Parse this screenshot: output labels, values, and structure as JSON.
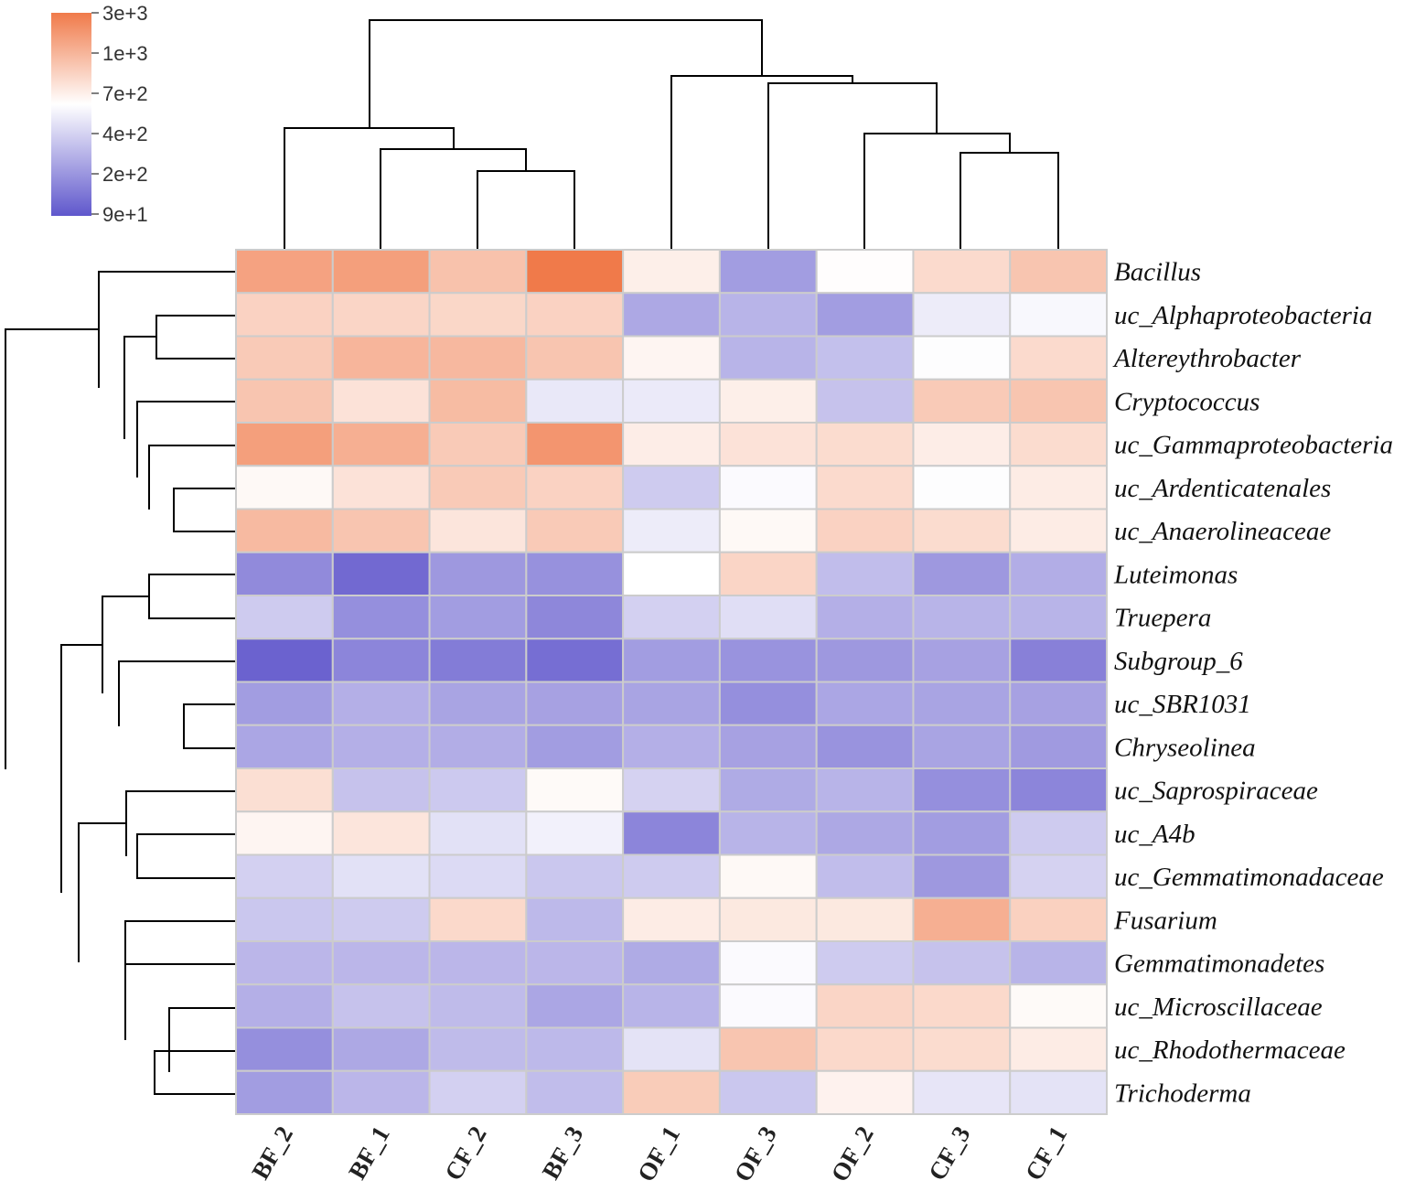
{
  "chart_data": {
    "type": "heatmap",
    "title": "",
    "columns": [
      "BF_2",
      "BF_1",
      "CF_2",
      "BF_3",
      "OF_1",
      "OF_3",
      "OF_2",
      "CF_3",
      "CF_1"
    ],
    "rows": [
      "Bacillus",
      "uc_Alphaproteobacteria",
      "Altereythrobacter",
      "Cryptococcus",
      "uc_Gammaproteobacteria",
      "uc_Ardenticatenales",
      "uc_Anaerolineaceae",
      "Luteimonas",
      "Truepera",
      "Subgroup_6",
      "uc_SBR1031",
      "Chryseolinea",
      "uc_Saprospiraceae",
      "uc_A4b",
      "uc_Gemmatimonadaceae",
      "Fusarium",
      "Gemmatimonadetes",
      "uc_Microscillaceae",
      "uc_Rhodothermaceae",
      "Trichoderma"
    ],
    "values_log10": [
      [
        3.2,
        3.22,
        3.0,
        3.45,
        2.72,
        2.2,
        2.63,
        2.85,
        2.98
      ],
      [
        2.9,
        2.88,
        2.87,
        2.9,
        2.25,
        2.3,
        2.2,
        2.54,
        2.59
      ],
      [
        2.95,
        3.08,
        3.06,
        2.98,
        2.68,
        2.3,
        2.35,
        2.61,
        2.85
      ],
      [
        2.98,
        2.8,
        3.04,
        2.52,
        2.53,
        2.72,
        2.36,
        2.95,
        2.98
      ],
      [
        3.22,
        3.12,
        2.95,
        3.28,
        2.73,
        2.8,
        2.84,
        2.73,
        2.84
      ],
      [
        2.66,
        2.8,
        2.95,
        2.9,
        2.4,
        2.6,
        2.85,
        2.61,
        2.74
      ],
      [
        3.05,
        2.98,
        2.78,
        2.95,
        2.54,
        2.66,
        2.9,
        2.84,
        2.74
      ],
      [
        2.12,
        1.98,
        2.18,
        2.15,
        2.62,
        2.88,
        2.34,
        2.18,
        2.27
      ],
      [
        2.4,
        2.14,
        2.2,
        2.11,
        2.42,
        2.48,
        2.28,
        2.3,
        2.3
      ],
      [
        1.95,
        2.1,
        2.06,
        2.0,
        2.2,
        2.16,
        2.18,
        2.22,
        2.08
      ],
      [
        2.2,
        2.28,
        2.23,
        2.22,
        2.23,
        2.14,
        2.24,
        2.23,
        2.22
      ],
      [
        2.24,
        2.28,
        2.27,
        2.2,
        2.28,
        2.22,
        2.16,
        2.23,
        2.19
      ],
      [
        2.82,
        2.36,
        2.39,
        2.65,
        2.43,
        2.26,
        2.3,
        2.14,
        2.1
      ],
      [
        2.68,
        2.78,
        2.49,
        2.56,
        2.1,
        2.3,
        2.25,
        2.2,
        2.4
      ],
      [
        2.42,
        2.49,
        2.46,
        2.38,
        2.4,
        2.66,
        2.34,
        2.18,
        2.43
      ],
      [
        2.38,
        2.4,
        2.86,
        2.32,
        2.74,
        2.76,
        2.76,
        3.12,
        2.91
      ],
      [
        2.31,
        2.31,
        2.31,
        2.31,
        2.26,
        2.6,
        2.4,
        2.36,
        2.3
      ],
      [
        2.28,
        2.36,
        2.33,
        2.24,
        2.3,
        2.6,
        2.88,
        2.86,
        2.65
      ],
      [
        2.14,
        2.25,
        2.33,
        2.32,
        2.5,
        2.98,
        2.86,
        2.84,
        2.74
      ],
      [
        2.2,
        2.31,
        2.42,
        2.34,
        2.94,
        2.38,
        2.7,
        2.51,
        2.5
      ]
    ],
    "color_scale": {
      "tick_labels": [
        "3e+3",
        "1e+3",
        "7e+2",
        "4e+2",
        "2e+2",
        "9e+1"
      ],
      "range_log10": [
        1.95,
        3.45
      ],
      "mid_log10": 2.62,
      "low_color": "#6b62cf",
      "mid_color": "#ffffff",
      "high_color": "#f07a4a"
    },
    "grid_color": "#cccccc",
    "row_dendrogram": "left",
    "column_dendrogram": "top",
    "legend_position": "top-left"
  }
}
